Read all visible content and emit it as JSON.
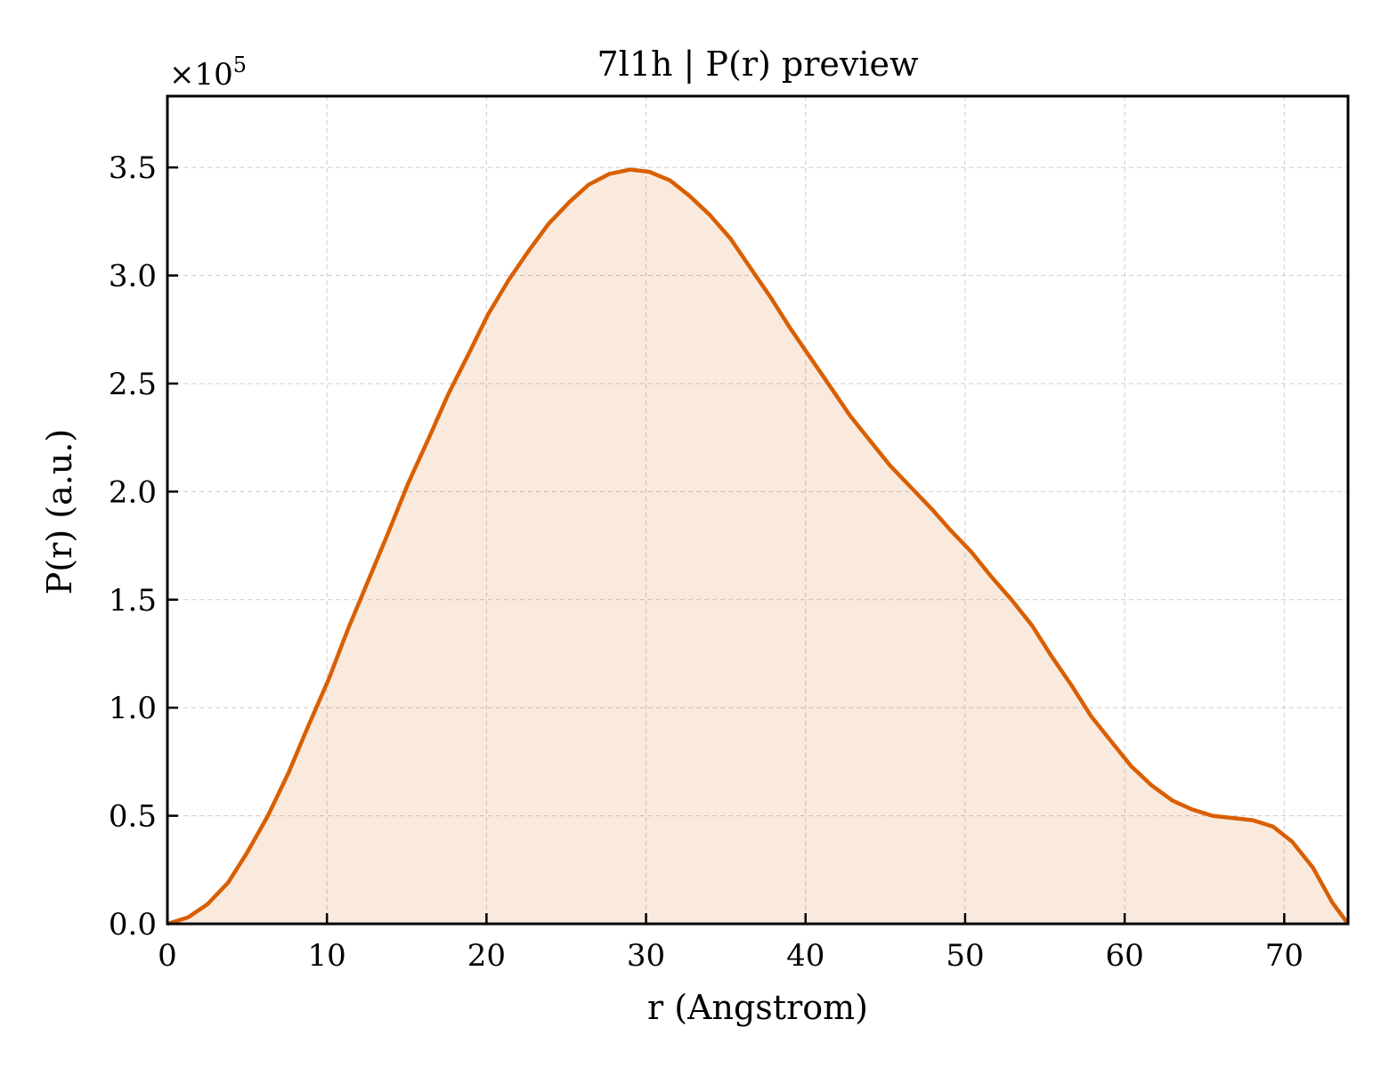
{
  "chart_data": {
    "type": "area",
    "title": "7l1h | P(r) preview",
    "xlabel": "r (Angstrom)",
    "ylabel": "P(r) (a.u.)",
    "y_multiplier_label": "×10",
    "y_multiplier_exponent": "5",
    "xlim": [
      0,
      74
    ],
    "ylim": [
      0,
      3.83
    ],
    "y_scale_factor": 100000,
    "x_ticks": [
      0,
      10,
      20,
      30,
      40,
      50,
      60,
      70
    ],
    "x_tick_labels": [
      "0",
      "10",
      "20",
      "30",
      "40",
      "50",
      "60",
      "70"
    ],
    "y_ticks": [
      0,
      0.5,
      1.0,
      1.5,
      2.0,
      2.5,
      3.0,
      3.5
    ],
    "y_tick_labels": [
      "0.0",
      "0.5",
      "1.0",
      "1.5",
      "2.0",
      "2.5",
      "3.0",
      "3.5"
    ],
    "grid": true,
    "legend": "none",
    "line_color": "#d95f02",
    "fill_color": "#d95f02",
    "fill_opacity": 0.13,
    "series": [
      {
        "x": [
          0,
          1.3,
          2.5,
          3.8,
          5.0,
          6.3,
          7.6,
          8.8,
          10.1,
          11.3,
          12.6,
          13.9,
          15.1,
          16.4,
          17.6,
          18.9,
          20.1,
          21.4,
          22.7,
          23.9,
          25.2,
          26.4,
          27.7,
          29.0,
          30.2,
          31.5,
          32.7,
          34.0,
          35.3,
          36.5,
          37.8,
          39.0,
          40.3,
          41.6,
          42.8,
          44.1,
          45.3,
          46.6,
          47.9,
          49.1,
          50.4,
          51.6,
          52.9,
          54.2,
          55.4,
          56.7,
          57.9,
          59.2,
          60.4,
          61.7,
          63.0,
          64.2,
          65.5,
          66.7,
          68.0,
          69.3,
          70.5,
          71.8,
          73.0,
          74.0
        ],
        "y": [
          0.0,
          0.03,
          0.09,
          0.19,
          0.33,
          0.5,
          0.7,
          0.91,
          1.13,
          1.36,
          1.59,
          1.82,
          2.04,
          2.25,
          2.45,
          2.64,
          2.82,
          2.98,
          3.12,
          3.24,
          3.34,
          3.42,
          3.47,
          3.49,
          3.48,
          3.44,
          3.37,
          3.28,
          3.17,
          3.04,
          2.9,
          2.76,
          2.62,
          2.48,
          2.35,
          2.23,
          2.12,
          2.02,
          1.92,
          1.82,
          1.72,
          1.61,
          1.5,
          1.38,
          1.24,
          1.1,
          0.96,
          0.84,
          0.73,
          0.64,
          0.57,
          0.53,
          0.5,
          0.49,
          0.48,
          0.45,
          0.38,
          0.26,
          0.1,
          0.0
        ]
      }
    ]
  }
}
